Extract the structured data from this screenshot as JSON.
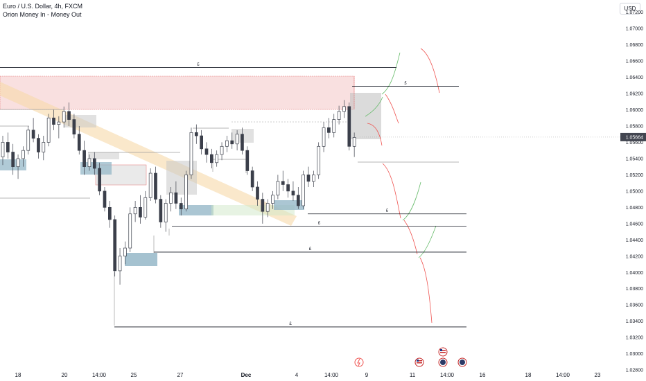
{
  "header": {
    "symbol_line": "Euro / U.S. Dollar, 4h, FXCM",
    "indicator_line": "Orion Money In - Money Out",
    "currency_button": "USD"
  },
  "colors": {
    "up": "#26a69a",
    "down": "#ef5350",
    "candle": "#3b3f4a",
    "supply_zone": "#f4c7c7",
    "demand_zone": "#8fb3c4",
    "grey_zone": "#c8c8c8",
    "trend_band": "#f7d9a8",
    "price_label_bg": "#434651"
  },
  "chart_data": {
    "type": "candlestick",
    "symbol": "EURUSD",
    "timeframe": "4h",
    "ylim": [
      1.0275,
      1.0735
    ],
    "y_ticks": [
      "1.07200",
      "1.07000",
      "1.06800",
      "1.06600",
      "1.06400",
      "1.06200",
      "1.06000",
      "1.05800",
      "1.05600",
      "1.05400",
      "1.05200",
      "1.05000",
      "1.04800",
      "1.04600",
      "1.04400",
      "1.04200",
      "1.04000",
      "1.03800",
      "1.03600",
      "1.03400",
      "1.03200",
      "1.03000",
      "1.02800"
    ],
    "current_price": "1.05664",
    "x_ticks": [
      "18",
      "20",
      "14:00",
      "25",
      "27",
      "Dec",
      "4",
      "14:00",
      "9",
      "11",
      "14:00",
      "16",
      "18",
      "14:00",
      "23"
    ],
    "levels": [
      {
        "label": "£",
        "price": 1.0652
      },
      {
        "label": "£",
        "price": 1.0629
      },
      {
        "label": "£",
        "price": 1.0472
      },
      {
        "label": "£",
        "price": 1.0457
      },
      {
        "label": "£",
        "price": 1.0425
      },
      {
        "label": "£",
        "price": 1.0333
      }
    ],
    "candles": [
      {
        "o": 1.0542,
        "h": 1.0568,
        "l": 1.0532,
        "c": 1.056
      },
      {
        "o": 1.056,
        "h": 1.0572,
        "l": 1.054,
        "c": 1.0548
      },
      {
        "o": 1.0548,
        "h": 1.0558,
        "l": 1.052,
        "c": 1.053
      },
      {
        "o": 1.053,
        "h": 1.0545,
        "l": 1.0515,
        "c": 1.054
      },
      {
        "o": 1.054,
        "h": 1.0555,
        "l": 1.053,
        "c": 1.055
      },
      {
        "o": 1.055,
        "h": 1.058,
        "l": 1.0545,
        "c": 1.0575
      },
      {
        "o": 1.0575,
        "h": 1.059,
        "l": 1.056,
        "c": 1.0565
      },
      {
        "o": 1.0565,
        "h": 1.057,
        "l": 1.054,
        "c": 1.0548
      },
      {
        "o": 1.0548,
        "h": 1.0568,
        "l": 1.0538,
        "c": 1.056
      },
      {
        "o": 1.056,
        "h": 1.0595,
        "l": 1.0555,
        "c": 1.059
      },
      {
        "o": 1.059,
        "h": 1.06,
        "l": 1.0575,
        "c": 1.0582
      },
      {
        "o": 1.0582,
        "h": 1.0592,
        "l": 1.0565,
        "c": 1.0585
      },
      {
        "o": 1.0585,
        "h": 1.0604,
        "l": 1.0578,
        "c": 1.0598
      },
      {
        "o": 1.0598,
        "h": 1.0609,
        "l": 1.058,
        "c": 1.0588
      },
      {
        "o": 1.0588,
        "h": 1.0595,
        "l": 1.0565,
        "c": 1.057
      },
      {
        "o": 1.057,
        "h": 1.058,
        "l": 1.0545,
        "c": 1.055
      },
      {
        "o": 1.055,
        "h": 1.0562,
        "l": 1.052,
        "c": 1.053
      },
      {
        "o": 1.053,
        "h": 1.0545,
        "l": 1.0525,
        "c": 1.054
      },
      {
        "o": 1.054,
        "h": 1.0548,
        "l": 1.052,
        "c": 1.0528
      },
      {
        "o": 1.0528,
        "h": 1.0535,
        "l": 1.0495,
        "c": 1.05
      },
      {
        "o": 1.05,
        "h": 1.0505,
        "l": 1.0475,
        "c": 1.048
      },
      {
        "o": 1.048,
        "h": 1.0488,
        "l": 1.0455,
        "c": 1.0465
      },
      {
        "o": 1.0465,
        "h": 1.047,
        "l": 1.0395,
        "c": 1.0402
      },
      {
        "o": 1.0402,
        "h": 1.043,
        "l": 1.0385,
        "c": 1.042
      },
      {
        "o": 1.042,
        "h": 1.0438,
        "l": 1.041,
        "c": 1.043
      },
      {
        "o": 1.043,
        "h": 1.048,
        "l": 1.0425,
        "c": 1.0472
      },
      {
        "o": 1.0472,
        "h": 1.0488,
        "l": 1.0462,
        "c": 1.048
      },
      {
        "o": 1.048,
        "h": 1.0495,
        "l": 1.046,
        "c": 1.0468
      },
      {
        "o": 1.0468,
        "h": 1.05,
        "l": 1.0465,
        "c": 1.0492
      },
      {
        "o": 1.0492,
        "h": 1.0528,
        "l": 1.0488,
        "c": 1.0522
      },
      {
        "o": 1.0522,
        "h": 1.053,
        "l": 1.0485,
        "c": 1.049
      },
      {
        "o": 1.049,
        "h": 1.0495,
        "l": 1.0455,
        "c": 1.0462
      },
      {
        "o": 1.0462,
        "h": 1.049,
        "l": 1.045,
        "c": 1.0485
      },
      {
        "o": 1.0485,
        "h": 1.0505,
        "l": 1.0475,
        "c": 1.0498
      },
      {
        "o": 1.0498,
        "h": 1.0512,
        "l": 1.0478,
        "c": 1.0485
      },
      {
        "o": 1.0485,
        "h": 1.0492,
        "l": 1.047,
        "c": 1.0478
      },
      {
        "o": 1.0478,
        "h": 1.0525,
        "l": 1.0475,
        "c": 1.052
      },
      {
        "o": 1.052,
        "h": 1.0578,
        "l": 1.0515,
        "c": 1.0572
      },
      {
        "o": 1.0572,
        "h": 1.0582,
        "l": 1.0558,
        "c": 1.0568
      },
      {
        "o": 1.0568,
        "h": 1.0575,
        "l": 1.0545,
        "c": 1.0552
      },
      {
        "o": 1.0552,
        "h": 1.056,
        "l": 1.0535,
        "c": 1.0545
      },
      {
        "o": 1.0545,
        "h": 1.0552,
        "l": 1.0528,
        "c": 1.0535
      },
      {
        "o": 1.0535,
        "h": 1.055,
        "l": 1.053,
        "c": 1.0545
      },
      {
        "o": 1.0545,
        "h": 1.056,
        "l": 1.0538,
        "c": 1.0555
      },
      {
        "o": 1.0555,
        "h": 1.0568,
        "l": 1.0548,
        "c": 1.0562
      },
      {
        "o": 1.0562,
        "h": 1.0572,
        "l": 1.0552,
        "c": 1.0558
      },
      {
        "o": 1.0558,
        "h": 1.0575,
        "l": 1.055,
        "c": 1.057
      },
      {
        "o": 1.057,
        "h": 1.0578,
        "l": 1.0545,
        "c": 1.055
      },
      {
        "o": 1.055,
        "h": 1.0555,
        "l": 1.052,
        "c": 1.0525
      },
      {
        "o": 1.0525,
        "h": 1.053,
        "l": 1.05,
        "c": 1.0505
      },
      {
        "o": 1.0505,
        "h": 1.0512,
        "l": 1.0482,
        "c": 1.049
      },
      {
        "o": 1.049,
        "h": 1.0498,
        "l": 1.046,
        "c": 1.0475
      },
      {
        "o": 1.0475,
        "h": 1.049,
        "l": 1.0468,
        "c": 1.0485
      },
      {
        "o": 1.0485,
        "h": 1.05,
        "l": 1.0478,
        "c": 1.0495
      },
      {
        "o": 1.0495,
        "h": 1.052,
        "l": 1.049,
        "c": 1.0512
      },
      {
        "o": 1.0512,
        "h": 1.0525,
        "l": 1.05,
        "c": 1.0508
      },
      {
        "o": 1.0508,
        "h": 1.0515,
        "l": 1.0492,
        "c": 1.05
      },
      {
        "o": 1.05,
        "h": 1.0512,
        "l": 1.0488,
        "c": 1.0495
      },
      {
        "o": 1.0495,
        "h": 1.0505,
        "l": 1.0478,
        "c": 1.0482
      },
      {
        "o": 1.0482,
        "h": 1.0525,
        "l": 1.0478,
        "c": 1.052
      },
      {
        "o": 1.052,
        "h": 1.053,
        "l": 1.0505,
        "c": 1.0512
      },
      {
        "o": 1.0512,
        "h": 1.0525,
        "l": 1.0505,
        "c": 1.052
      },
      {
        "o": 1.052,
        "h": 1.056,
        "l": 1.0515,
        "c": 1.0555
      },
      {
        "o": 1.0555,
        "h": 1.0585,
        "l": 1.0548,
        "c": 1.0578
      },
      {
        "o": 1.0578,
        "h": 1.059,
        "l": 1.0565,
        "c": 1.0572
      },
      {
        "o": 1.0572,
        "h": 1.0595,
        "l": 1.0566,
        "c": 1.0588
      },
      {
        "o": 1.0588,
        "h": 1.0605,
        "l": 1.0582,
        "c": 1.0598
      },
      {
        "o": 1.0598,
        "h": 1.0612,
        "l": 1.059,
        "c": 1.0604
      },
      {
        "o": 1.0604,
        "h": 1.0609,
        "l": 1.055,
        "c": 1.0555
      },
      {
        "o": 1.0555,
        "h": 1.0572,
        "l": 1.0542,
        "c": 1.0566
      }
    ]
  }
}
